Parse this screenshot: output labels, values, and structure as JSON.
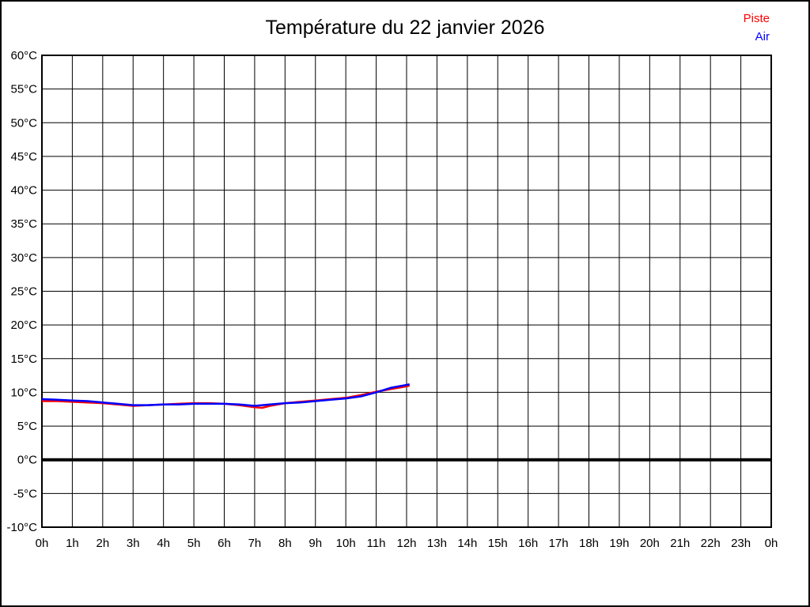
{
  "title": "Température du 22 janvier 2026",
  "legend": {
    "position": "top-right",
    "items": [
      {
        "label": "Piste",
        "color": "#ff0000"
      },
      {
        "label": "Air",
        "color": "#0000ff"
      }
    ]
  },
  "colors": {
    "background": "#ffffff",
    "frame_border": "#000000",
    "grid": "#000000",
    "zero_line": "#000000",
    "piste_line": "#ff0000",
    "air_line": "#0000ff"
  },
  "chart_data": {
    "type": "line",
    "title": "Température du 22 janvier 2026",
    "xlabel": "",
    "ylabel": "",
    "xlim": [
      0,
      24
    ],
    "ylim": [
      -10,
      60
    ],
    "grid": true,
    "legend_position": "top-right",
    "x_tick_hours": [
      0,
      1,
      2,
      3,
      4,
      5,
      6,
      7,
      8,
      9,
      10,
      11,
      12,
      13,
      14,
      15,
      16,
      17,
      18,
      19,
      20,
      21,
      22,
      23,
      24
    ],
    "x_tick_labels": [
      "0h",
      "1h",
      "2h",
      "3h",
      "4h",
      "5h",
      "6h",
      "7h",
      "8h",
      "9h",
      "10h",
      "11h",
      "12h",
      "13h",
      "14h",
      "15h",
      "16h",
      "17h",
      "18h",
      "19h",
      "20h",
      "21h",
      "22h",
      "23h",
      "0h"
    ],
    "y_tick_values": [
      60,
      55,
      50,
      45,
      40,
      35,
      30,
      25,
      20,
      15,
      10,
      5,
      0,
      -5,
      -10
    ],
    "y_tick_labels": [
      "60°C",
      "55°C",
      "50°C",
      "45°C",
      "40°C",
      "35°C",
      "30°C",
      "25°C",
      "20°C",
      "15°C",
      "10°C",
      "5°C",
      "0°C",
      "-5°C",
      "-10°C"
    ],
    "zero_line": {
      "value": 0,
      "color": "#000000",
      "width": 4
    },
    "series": [
      {
        "name": "Piste",
        "color": "#ff0000",
        "points": [
          [
            0,
            8.7
          ],
          [
            0.5,
            8.7
          ],
          [
            1,
            8.6
          ],
          [
            1.5,
            8.5
          ],
          [
            2,
            8.4
          ],
          [
            2.5,
            8.2
          ],
          [
            3,
            8.0
          ],
          [
            3.5,
            8.1
          ],
          [
            4,
            8.2
          ],
          [
            4.5,
            8.3
          ],
          [
            5,
            8.4
          ],
          [
            5.5,
            8.4
          ],
          [
            6,
            8.3
          ],
          [
            6.5,
            8.1
          ],
          [
            7,
            7.8
          ],
          [
            7.25,
            7.7
          ],
          [
            7.5,
            8.0
          ],
          [
            8,
            8.4
          ],
          [
            8.5,
            8.6
          ],
          [
            9,
            8.8
          ],
          [
            9.5,
            9.0
          ],
          [
            10,
            9.2
          ],
          [
            10.5,
            9.6
          ],
          [
            11,
            10.1
          ],
          [
            11.5,
            10.5
          ],
          [
            12,
            10.9
          ],
          [
            12.1,
            11.0
          ]
        ]
      },
      {
        "name": "Air",
        "color": "#0000ff",
        "points": [
          [
            0,
            9.0
          ],
          [
            0.5,
            8.9
          ],
          [
            1,
            8.8
          ],
          [
            1.5,
            8.7
          ],
          [
            2,
            8.5
          ],
          [
            2.5,
            8.3
          ],
          [
            3,
            8.1
          ],
          [
            3.5,
            8.1
          ],
          [
            4,
            8.2
          ],
          [
            4.5,
            8.2
          ],
          [
            5,
            8.3
          ],
          [
            5.5,
            8.3
          ],
          [
            6,
            8.3
          ],
          [
            6.5,
            8.2
          ],
          [
            7,
            8.0
          ],
          [
            7.5,
            8.2
          ],
          [
            8,
            8.4
          ],
          [
            8.5,
            8.5
          ],
          [
            9,
            8.7
          ],
          [
            9.5,
            8.9
          ],
          [
            10,
            9.1
          ],
          [
            10.5,
            9.4
          ],
          [
            11,
            10.0
          ],
          [
            11.5,
            10.7
          ],
          [
            12,
            11.1
          ],
          [
            12.1,
            11.2
          ]
        ]
      }
    ]
  }
}
